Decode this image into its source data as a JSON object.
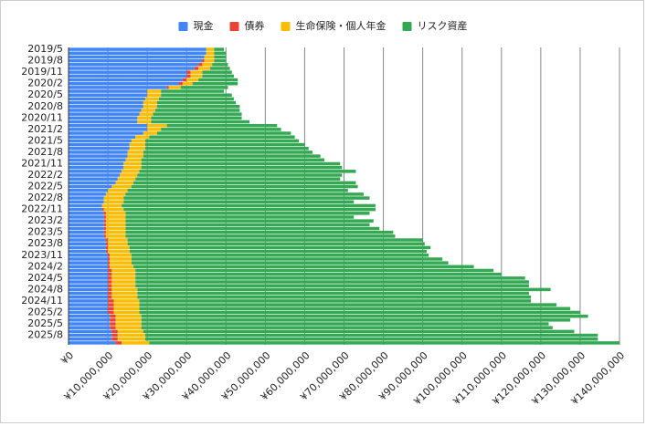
{
  "chart_data": {
    "type": "stacked_hbar",
    "categories": [
      "2019/5",
      null,
      null,
      "2019/8",
      null,
      null,
      "2019/11",
      null,
      null,
      "2020/2",
      null,
      null,
      "2020/5",
      null,
      null,
      "2020/8",
      null,
      null,
      "2020/11",
      null,
      null,
      "2021/2",
      null,
      null,
      "2021/5",
      null,
      null,
      "2021/8",
      null,
      null,
      "2021/11",
      null,
      null,
      "2022/2",
      null,
      null,
      "2022/5",
      null,
      null,
      "2022/8",
      null,
      null,
      "2022/11",
      null,
      null,
      "2023/2",
      null,
      null,
      "2023/5",
      null,
      null,
      "2023/8",
      null,
      null,
      "2023/11",
      null,
      null,
      "2024/2",
      null,
      null,
      "2024/5",
      null,
      null,
      "2024/8",
      null,
      null,
      "2024/11",
      null,
      null,
      "2025/2",
      null,
      null,
      "2025/5",
      null,
      null,
      "2025/8",
      null,
      null
    ],
    "series": [
      {
        "name": "現金",
        "color": "#4285f4",
        "values": [
          35000000,
          35000000,
          34500000,
          34000000,
          33000000,
          32000000,
          30000000,
          30000000,
          29000000,
          28000000,
          25000000,
          20000000,
          20000000,
          19500000,
          19000000,
          19000000,
          18500000,
          18000000,
          17500000,
          17500000,
          20000000,
          20000000,
          19000000,
          17000000,
          16000000,
          15500000,
          15500000,
          15000000,
          15000000,
          14500000,
          14000000,
          14000000,
          13500000,
          13000000,
          12500000,
          12000000,
          11000000,
          10000000,
          9500000,
          9000000,
          9000000,
          8500000,
          8500000,
          9000000,
          9000000,
          9000000,
          9000000,
          9000000,
          9000000,
          9000000,
          9500000,
          9500000,
          9500000,
          9500000,
          10000000,
          10000000,
          10000000,
          10000000,
          10000000,
          10000000,
          10000000,
          10000000,
          10000000,
          10000000,
          10000000,
          10000000,
          10000000,
          10000000,
          10000000,
          10000000,
          10500000,
          10500000,
          10500000,
          10500000,
          11000000,
          11000000,
          11000000,
          12000000
        ]
      },
      {
        "name": "債券",
        "color": "#ea4335",
        "values": [
          0,
          0,
          0,
          500000,
          1000000,
          1000000,
          1000000,
          1000000,
          1000000,
          1000000,
          500000,
          0,
          0,
          0,
          0,
          0,
          0,
          0,
          0,
          0,
          0,
          0,
          0,
          0,
          0,
          0,
          0,
          0,
          0,
          0,
          0,
          0,
          0,
          0,
          0,
          0,
          0,
          0,
          0,
          0,
          0,
          0,
          500000,
          500000,
          500000,
          500000,
          500000,
          500000,
          500000,
          500000,
          500000,
          500000,
          500000,
          500000,
          500000,
          500000,
          500000,
          500000,
          1000000,
          1000000,
          1000000,
          1000000,
          1000000,
          1000000,
          1000000,
          1000000,
          1500000,
          1500000,
          1500000,
          1500000,
          1500000,
          1500000,
          1500000,
          1500000,
          1500000,
          1500000,
          1500000,
          1500000
        ]
      },
      {
        "name": "生命保険・個人年金",
        "color": "#fbbc04",
        "values": [
          2000000,
          2000000,
          2500000,
          2500000,
          2500000,
          3000000,
          3000000,
          3000000,
          3000000,
          2500000,
          3000000,
          3500000,
          3500000,
          3500000,
          3500000,
          3500000,
          3500000,
          3500000,
          3500000,
          3500000,
          5000000,
          3500000,
          3500000,
          3500000,
          3500000,
          4000000,
          4000000,
          4000000,
          4000000,
          4000000,
          4500000,
          4500000,
          4500000,
          4500000,
          4500000,
          4500000,
          5000000,
          5000000,
          5000000,
          5000000,
          5000000,
          5000000,
          5000000,
          5000000,
          5000000,
          5000000,
          5000000,
          5000000,
          5000000,
          5000000,
          5000000,
          5000000,
          5500000,
          5500000,
          5500000,
          5500000,
          5500000,
          6000000,
          6000000,
          6000000,
          6000000,
          6000000,
          6000000,
          6500000,
          6500000,
          6500000,
          6500000,
          6500000,
          6500000,
          6500000,
          6500000,
          6500000,
          6500000,
          6500000,
          6500000,
          7000000,
          7000000,
          7000000
        ]
      },
      {
        "name": "リスク資産",
        "color": "#34a853",
        "values": [
          2500000,
          3000000,
          3000000,
          3000000,
          4000000,
          5000000,
          7500000,
          8000000,
          10000000,
          11500000,
          12000000,
          16000000,
          18000000,
          19000000,
          20000000,
          21000000,
          21500000,
          22500000,
          23000000,
          25000000,
          28000000,
          30500000,
          34000000,
          37000000,
          39000000,
          40500000,
          41500000,
          43000000,
          45000000,
          46500000,
          50500000,
          51000000,
          55000000,
          52000000,
          52000000,
          56500000,
          57500000,
          56000000,
          60500000,
          62500000,
          58500000,
          64500000,
          64000000,
          62000000,
          58000000,
          63000000,
          62000000,
          64500000,
          68000000,
          68500000,
          75000000,
          75500000,
          76500000,
          75500000,
          75500000,
          79000000,
          80500000,
          86500000,
          91000000,
          93000000,
          99000000,
          100000000,
          100000000,
          105000000,
          99500000,
          100000000,
          99500000,
          106000000,
          109500000,
          112000000,
          113500000,
          109000000,
          103500000,
          104500000,
          109500000,
          115000000,
          115000000,
          119500000
        ]
      }
    ],
    "xlim": [
      0,
      140000000
    ],
    "xticks": [
      {
        "value": 0,
        "label": "¥0"
      },
      {
        "value": 10000000,
        "label": "¥10,000,000"
      },
      {
        "value": 20000000,
        "label": "¥20,000,000"
      },
      {
        "value": 30000000,
        "label": "¥30,000,000"
      },
      {
        "value": 40000000,
        "label": "¥40,000,000"
      },
      {
        "value": 50000000,
        "label": "¥50,000,000"
      },
      {
        "value": 60000000,
        "label": "¥60,000,000"
      },
      {
        "value": 70000000,
        "label": "¥70,000,000"
      },
      {
        "value": 80000000,
        "label": "¥80,000,000"
      },
      {
        "value": 90000000,
        "label": "¥90,000,000"
      },
      {
        "value": 100000000,
        "label": "¥100,000,000"
      },
      {
        "value": 110000000,
        "label": "¥110,000,000"
      },
      {
        "value": 120000000,
        "label": "¥120,000,000"
      },
      {
        "value": 130000000,
        "label": "¥130,000,000"
      },
      {
        "value": 140000000,
        "label": "¥140,000,000"
      }
    ],
    "grid": true,
    "legend": "top"
  }
}
